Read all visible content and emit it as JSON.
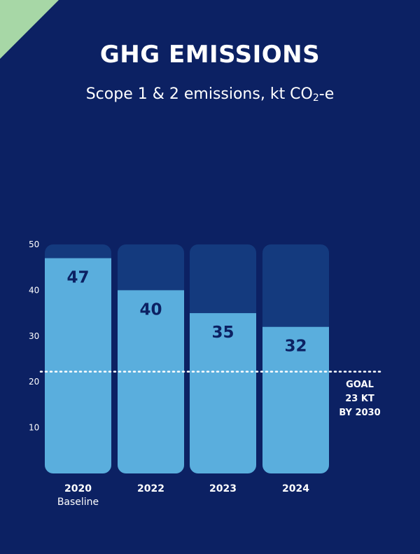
{
  "header": {
    "title": "GHG EMISSIONS",
    "subtitle_main": "Scope 1 & 2 emissions, kt CO",
    "subtitle_sub": "2",
    "subtitle_end": "-e"
  },
  "colors": {
    "background": "#0c2163",
    "bar_track": "#143a7e",
    "bar_fill": "#5aaedd",
    "corner_accent": "#a7d7a6",
    "goal_line": "#ffffff"
  },
  "chart_data": {
    "type": "bar",
    "categories": [
      "2020",
      "2022",
      "2023",
      "2024"
    ],
    "category_sublabels": [
      "Baseline",
      "",
      "",
      ""
    ],
    "values": [
      47,
      40,
      35,
      32
    ],
    "value_labels": [
      "47",
      "40",
      "35",
      "32"
    ],
    "ylim": [
      0,
      50
    ],
    "yticks": [
      10,
      20,
      30,
      40,
      50
    ],
    "grid": false,
    "goal": {
      "value": 23,
      "label_lines": [
        "GOAL",
        "23 KT",
        "BY 2030"
      ],
      "style": "dotted"
    }
  }
}
